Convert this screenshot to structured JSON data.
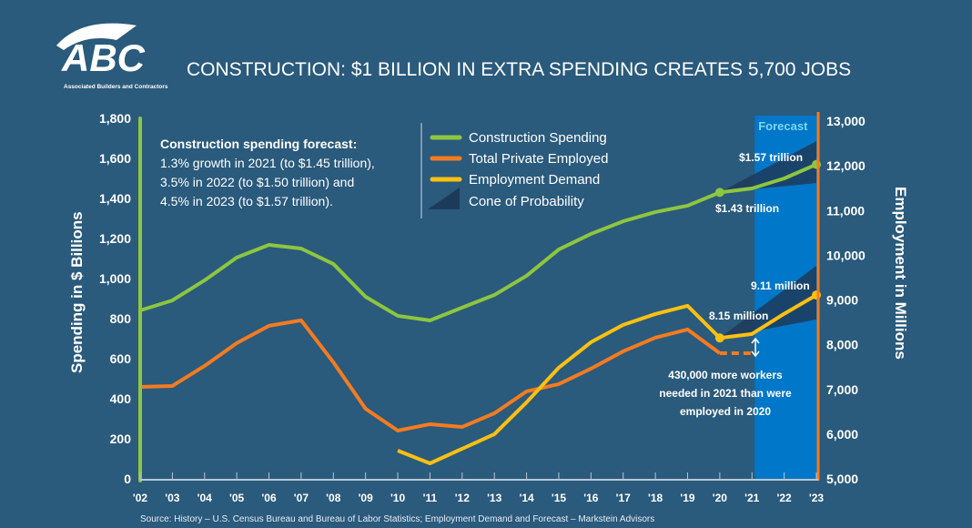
{
  "logo": {
    "text": "ABC",
    "subtitle": "Associated Builders and Contractors"
  },
  "chart_data": {
    "type": "line",
    "title": "CONSTRUCTION: $1 BILLION IN EXTRA SPENDING CREATES 5,700 JOBS",
    "x": [
      "'02",
      "'03",
      "'04",
      "'05",
      "'06",
      "'07",
      "'08",
      "'09",
      "'10",
      "'11",
      "'12",
      "'13",
      "'14",
      "'15",
      "'16",
      "'17",
      "'18",
      "'19",
      "'20",
      "'21",
      "'22",
      "'23"
    ],
    "ylabel": "Spending in $ Billions",
    "y2label": "Employment in Millions",
    "ylim": [
      0,
      1800
    ],
    "y2lim": [
      5000,
      13000
    ],
    "yticks": [
      "0",
      "200",
      "400",
      "600",
      "800",
      "1,000",
      "1,200",
      "1,400",
      "1,600",
      "1,800"
    ],
    "y2ticks": [
      "5,000",
      "6,000",
      "7,000",
      "8,000",
      "9,000",
      "10,000",
      "11,000",
      "12,000",
      "13,000"
    ],
    "series": [
      {
        "name": "Construction Spending",
        "axis": "left",
        "color": "#8dc63f",
        "values": [
          841,
          891,
          991,
          1105,
          1168,
          1150,
          1073,
          909,
          814,
          791,
          855,
          918,
          1014,
          1145,
          1223,
          1286,
          1332,
          1364,
          1430,
          1450,
          1500,
          1570
        ]
      },
      {
        "name": "Total Private Employed",
        "axis": "right",
        "color": "#f47b20",
        "values": [
          7057,
          7077,
          7525,
          8035,
          8422,
          8544,
          7607,
          6568,
          6079,
          6222,
          6161,
          6466,
          6955,
          7118,
          7464,
          7851,
          8157,
          8340,
          7810,
          null,
          null,
          null
        ],
        "dashed_extension": {
          "from": "'20",
          "to": "'21",
          "value": 7810
        }
      },
      {
        "name": "Employment Demand",
        "axis": "right",
        "color": "#fdc010",
        "values": [
          null,
          null,
          null,
          null,
          null,
          null,
          null,
          null,
          5631,
          5346,
          5672,
          5998,
          6711,
          7485,
          8055,
          8442,
          8686,
          8870,
          8150,
          8240,
          8690,
          9110
        ]
      },
      {
        "name": "Cone of Probability",
        "color": "#1e3a5a",
        "cones": [
          {
            "axis": "left",
            "start": [
              "'20",
              1430
            ],
            "end_upper": [
              "'23",
              1686
            ],
            "end_lower": [
              "'23",
              1477
            ]
          },
          {
            "axis": "right",
            "start": [
              "'20",
              8150
            ],
            "end_upper": [
              "'23",
              9766
            ],
            "end_lower": [
              "'23",
              8564
            ]
          }
        ]
      }
    ],
    "forecast_band": {
      "label": "Forecast",
      "from": "'21",
      "to": "'23",
      "color": "#0077c8"
    },
    "annotations": {
      "spend_2020": "$1.43 trillion",
      "spend_2023": "$1.57 trillion",
      "emp_2020": "8.15 million",
      "emp_2023": "9.11 million",
      "gap": [
        "430,000 more workers",
        "needed in 2021 than were",
        "employed in 2020"
      ]
    },
    "forecast_note": {
      "heading": "Construction spending forecast:",
      "lines": [
        "1.3% growth in 2021 (to $1.45 trillion),",
        "3.5% in 2022 (to $1.50 trillion) and",
        "4.5% in 2023 (to $1.57 trillion)."
      ]
    },
    "legend_position": "top-center",
    "source": "Source:  History – U.S. Census Bureau and Bureau of Labor Statistics;  Employment Demand and Forecast – Markstein Advisors"
  }
}
